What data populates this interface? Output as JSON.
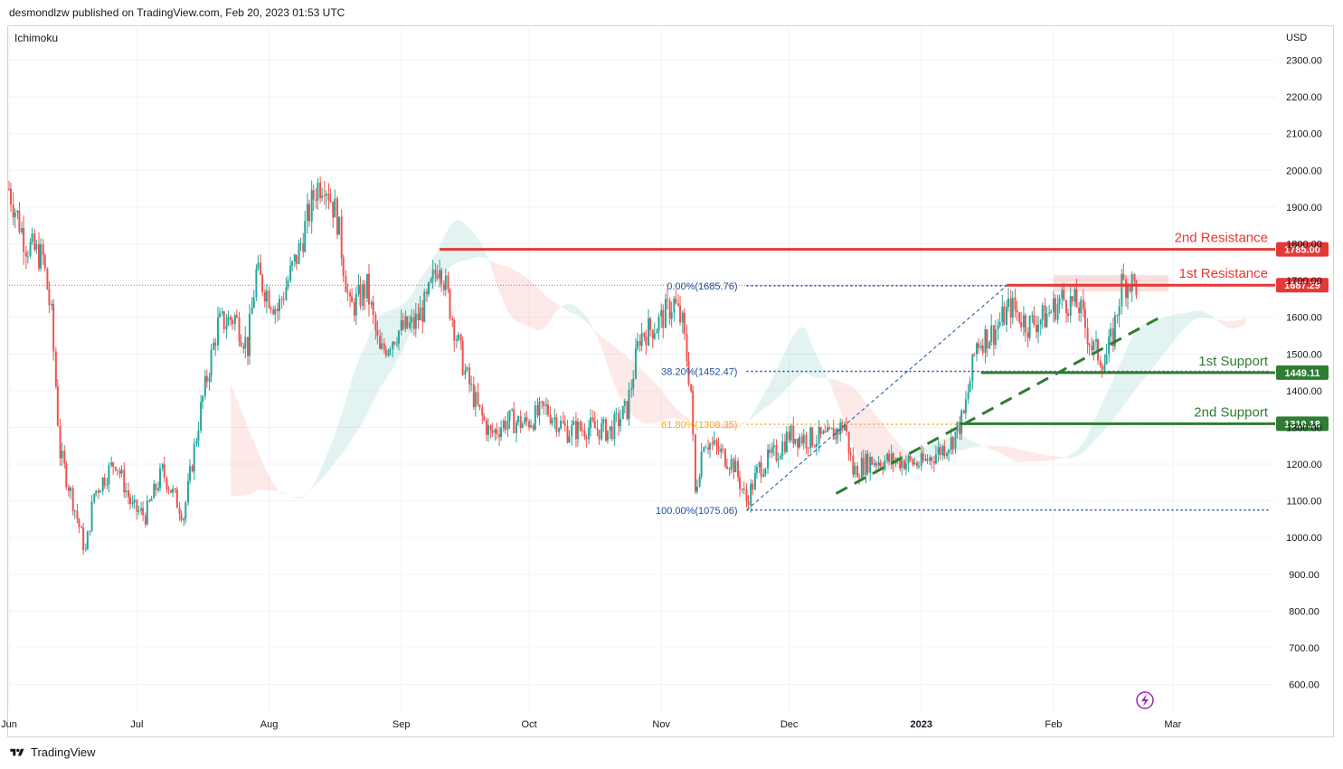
{
  "header": {
    "publisher_text": "desmondlzw published on TradingView.com, Feb 20, 2023 01:53 UTC"
  },
  "indicator": {
    "label": "Ichimoku"
  },
  "footer": {
    "brand": "TradingView",
    "logo_icon": "tradingview-logo-icon"
  },
  "colors": {
    "up": "#26a69a",
    "down": "#ef5350",
    "resistance": "#e53935",
    "support": "#2e7d32",
    "fib_blue": "#1c4fa0",
    "fib_orange": "#f5a623",
    "grid": "#f0f3fa",
    "text": "#131722"
  },
  "chart_data": {
    "type": "candlestick",
    "currency": "USD",
    "y_ticks": [
      600,
      700,
      800,
      900,
      1000,
      1100,
      1200,
      1300,
      1400,
      1500,
      1600,
      1700,
      1800,
      1900,
      2000,
      2100,
      2200,
      2300
    ],
    "y_tick_labels": [
      "600.00",
      "700.00",
      "800.00",
      "900.00",
      "1000.00",
      "1100.00",
      "1200.00",
      "1300.00",
      "1400.00",
      "1500.00",
      "1600.00",
      "1700.00",
      "1800.00",
      "1900.00",
      "2000.00",
      "2100.00",
      "2200.00",
      "2300.00"
    ],
    "ylim": [
      530,
      2390
    ],
    "x_tick_labels": [
      "Jun",
      "Jul",
      "Aug",
      "Sep",
      "Oct",
      "Nov",
      "Dec",
      "2023",
      "Feb",
      "Mar"
    ],
    "x_tick_dates": [
      "2022-06-01",
      "2022-07-01",
      "2022-08-01",
      "2022-09-01",
      "2022-10-01",
      "2022-11-01",
      "2022-12-01",
      "2023-01-01",
      "2023-02-01",
      "2023-03-01"
    ],
    "x_range": [
      "2022-06-01",
      "2023-03-25"
    ],
    "price_path": [
      {
        "date": "2022-06-01",
        "price": 1950
      },
      {
        "date": "2022-06-05",
        "price": 1800
      },
      {
        "date": "2022-06-09",
        "price": 1760
      },
      {
        "date": "2022-06-11",
        "price": 1600
      },
      {
        "date": "2022-06-13",
        "price": 1230
      },
      {
        "date": "2022-06-16",
        "price": 1100
      },
      {
        "date": "2022-06-19",
        "price": 960
      },
      {
        "date": "2022-06-21",
        "price": 1120
      },
      {
        "date": "2022-06-26",
        "price": 1210
      },
      {
        "date": "2022-06-30",
        "price": 1080
      },
      {
        "date": "2022-07-03",
        "price": 1060
      },
      {
        "date": "2022-07-07",
        "price": 1180
      },
      {
        "date": "2022-07-12",
        "price": 1060
      },
      {
        "date": "2022-07-16",
        "price": 1350
      },
      {
        "date": "2022-07-20",
        "price": 1580
      },
      {
        "date": "2022-07-24",
        "price": 1600
      },
      {
        "date": "2022-07-27",
        "price": 1520
      },
      {
        "date": "2022-07-29",
        "price": 1720
      },
      {
        "date": "2022-08-03",
        "price": 1620
      },
      {
        "date": "2022-08-08",
        "price": 1780
      },
      {
        "date": "2022-08-12",
        "price": 1950
      },
      {
        "date": "2022-08-14",
        "price": 1980
      },
      {
        "date": "2022-08-17",
        "price": 1870
      },
      {
        "date": "2022-08-20",
        "price": 1620
      },
      {
        "date": "2022-08-24",
        "price": 1680
      },
      {
        "date": "2022-08-27",
        "price": 1500
      },
      {
        "date": "2022-08-31",
        "price": 1560
      },
      {
        "date": "2022-09-04",
        "price": 1580
      },
      {
        "date": "2022-09-07",
        "price": 1640
      },
      {
        "date": "2022-09-10",
        "price": 1760
      },
      {
        "date": "2022-09-13",
        "price": 1600
      },
      {
        "date": "2022-09-16",
        "price": 1450
      },
      {
        "date": "2022-09-19",
        "price": 1350
      },
      {
        "date": "2022-09-22",
        "price": 1280
      },
      {
        "date": "2022-09-26",
        "price": 1320
      },
      {
        "date": "2022-09-30",
        "price": 1310
      },
      {
        "date": "2022-10-05",
        "price": 1350
      },
      {
        "date": "2022-10-10",
        "price": 1290
      },
      {
        "date": "2022-10-15",
        "price": 1300
      },
      {
        "date": "2022-10-20",
        "price": 1290
      },
      {
        "date": "2022-10-24",
        "price": 1350
      },
      {
        "date": "2022-10-27",
        "price": 1550
      },
      {
        "date": "2022-10-31",
        "price": 1580
      },
      {
        "date": "2022-11-04",
        "price": 1640
      },
      {
        "date": "2022-11-06",
        "price": 1580
      },
      {
        "date": "2022-11-08",
        "price": 1400
      },
      {
        "date": "2022-11-09",
        "price": 1120
      },
      {
        "date": "2022-11-11",
        "price": 1270
      },
      {
        "date": "2022-11-15",
        "price": 1230
      },
      {
        "date": "2022-11-18",
        "price": 1200
      },
      {
        "date": "2022-11-21",
        "price": 1100
      },
      {
        "date": "2022-11-24",
        "price": 1190
      },
      {
        "date": "2022-11-28",
        "price": 1230
      },
      {
        "date": "2022-12-01",
        "price": 1280
      },
      {
        "date": "2022-12-05",
        "price": 1270
      },
      {
        "date": "2022-12-10",
        "price": 1270
      },
      {
        "date": "2022-12-14",
        "price": 1310
      },
      {
        "date": "2022-12-16",
        "price": 1180
      },
      {
        "date": "2022-12-20",
        "price": 1210
      },
      {
        "date": "2022-12-27",
        "price": 1210
      },
      {
        "date": "2023-01-01",
        "price": 1200
      },
      {
        "date": "2023-01-08",
        "price": 1260
      },
      {
        "date": "2023-01-11",
        "price": 1330
      },
      {
        "date": "2023-01-14",
        "price": 1530
      },
      {
        "date": "2023-01-18",
        "price": 1560
      },
      {
        "date": "2023-01-22",
        "price": 1630
      },
      {
        "date": "2023-01-26",
        "price": 1580
      },
      {
        "date": "2023-01-30",
        "price": 1600
      },
      {
        "date": "2023-02-03",
        "price": 1650
      },
      {
        "date": "2023-02-07",
        "price": 1630
      },
      {
        "date": "2023-02-10",
        "price": 1520
      },
      {
        "date": "2023-02-13",
        "price": 1480
      },
      {
        "date": "2023-02-15",
        "price": 1550
      },
      {
        "date": "2023-02-17",
        "price": 1690
      },
      {
        "date": "2023-02-19",
        "price": 1700
      },
      {
        "date": "2023-02-20",
        "price": 1687
      }
    ],
    "last_price": 1687.29,
    "levels": [
      {
        "label": "2nd Resistance",
        "value": 1785.0,
        "value_label": "1785.00",
        "color": "#e53935",
        "from": "2022-09-10",
        "to": "2023-03-25"
      },
      {
        "label": "1st Resistance",
        "value": 1687.29,
        "value_label": "1687.29",
        "color": "#e53935",
        "from": "2023-01-21",
        "to": "2023-03-25"
      },
      {
        "label": "1st Support",
        "value": 1449.11,
        "value_label": "1449.11",
        "color": "#2e7d32",
        "from": "2023-01-15",
        "to": "2023-03-25"
      },
      {
        "label": "2nd Support",
        "value": 1310.18,
        "value_label": "1310.18",
        "color": "#2e7d32",
        "from": "2023-01-10",
        "to": "2023-03-25"
      }
    ],
    "fib_levels": [
      {
        "label": "0.00%(1685.76)",
        "value": 1685.76,
        "color": "#1c4fa0"
      },
      {
        "label": "38.20%(1452.47)",
        "value": 1452.47,
        "color": "#1c4fa0"
      },
      {
        "label": "61.80%(1308.35)",
        "value": 1308.35,
        "color": "#f5a623"
      },
      {
        "label": "100.00%(1075.06)",
        "value": 1075.06,
        "color": "#1c4fa0"
      }
    ],
    "fib_start_date": "2022-11-21",
    "fib_end_date": "2023-03-24",
    "fib_diagonal": [
      {
        "date": "2022-11-21",
        "price": 1075.06
      },
      {
        "date": "2023-01-21",
        "price": 1685.76
      }
    ],
    "trendline": [
      {
        "date": "2022-12-12",
        "price": 1120
      },
      {
        "date": "2023-02-26",
        "price": 1600
      }
    ],
    "resistance_zone": {
      "from": "2023-02-01",
      "to": "2023-02-28",
      "low": 1670,
      "high": 1715
    }
  }
}
